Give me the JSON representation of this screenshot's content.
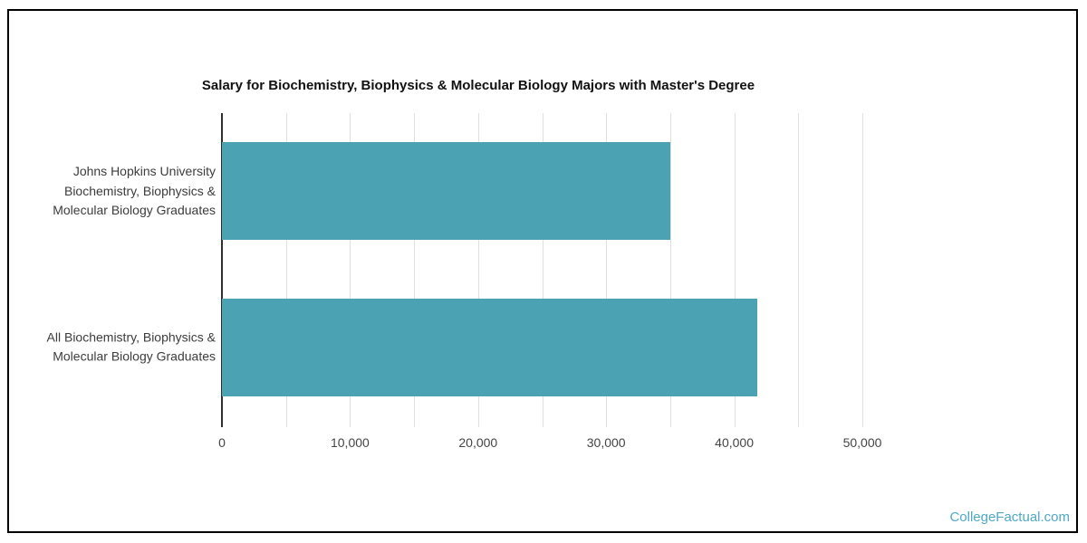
{
  "page": {
    "watermark": "CollegeFactual.com"
  },
  "chart_data": {
    "type": "bar",
    "orientation": "horizontal",
    "title": "Salary for Biochemistry, Biophysics & Molecular Biology Majors with Master's Degree",
    "categories": [
      "Johns Hopkins University Biochemistry, Biophysics & Molecular Biology Graduates",
      "All Biochemistry, Biophysics & Molecular Biology Graduates"
    ],
    "category_lines": [
      [
        "Johns Hopkins University",
        "Biochemistry, Biophysics &",
        "Molecular Biology Graduates"
      ],
      [
        "All Biochemistry, Biophysics &",
        "Molecular Biology Graduates"
      ]
    ],
    "values": [
      35000,
      41800
    ],
    "xlabel": "",
    "ylabel": "",
    "xlim": [
      0,
      50000
    ],
    "x_ticks": [
      {
        "value": 0,
        "label": "0"
      },
      {
        "value": 10000,
        "label": "10,000"
      },
      {
        "value": 20000,
        "label": "20,000"
      },
      {
        "value": 30000,
        "label": "30,000"
      },
      {
        "value": 40000,
        "label": "40,000"
      },
      {
        "value": 50000,
        "label": "50,000"
      }
    ],
    "gridline_step": 5000,
    "grid": true,
    "legend": false,
    "bar_color": "#4aa2b2",
    "colors": {
      "grid": "#e0e0e0",
      "axis": "#2f2f2f",
      "title": "#111111",
      "labels": "#3c3c3c",
      "ticks": "#444444",
      "watermark": "#4fa8c4"
    }
  }
}
